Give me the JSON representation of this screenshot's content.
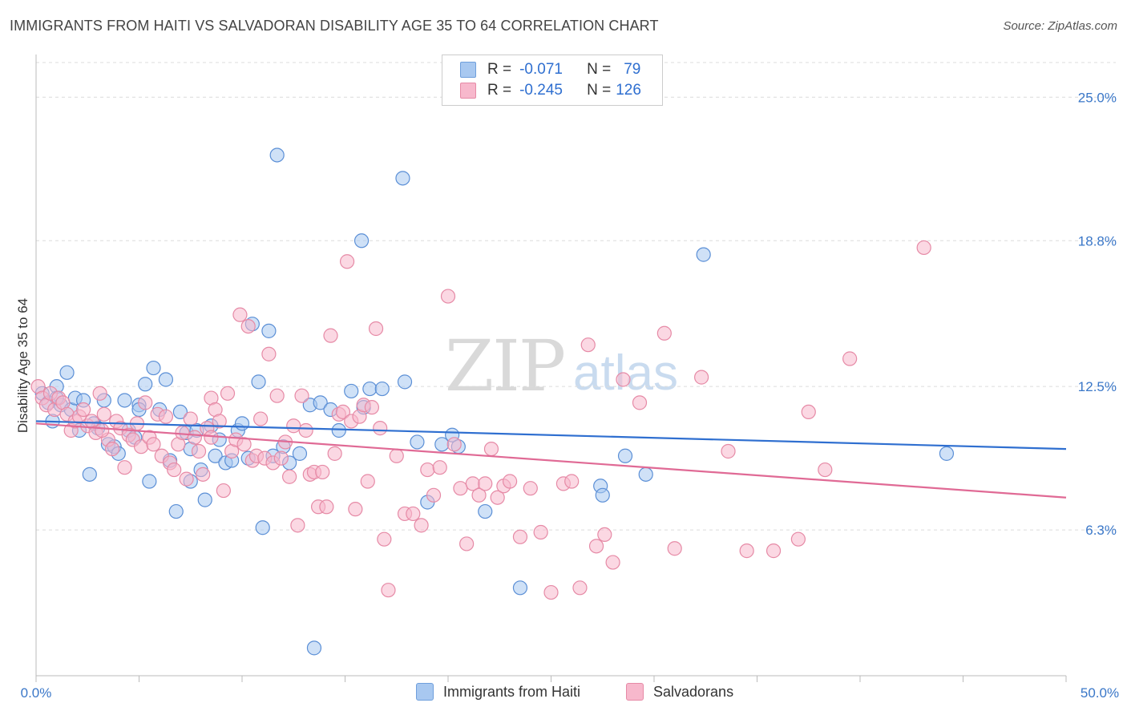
{
  "title": "IMMIGRANTS FROM HAITI VS SALVADORAN DISABILITY AGE 35 TO 64 CORRELATION CHART",
  "source": "Source: ZipAtlas.com",
  "watermark": {
    "zip": "ZIP",
    "atlas": "atlas"
  },
  "legend": {
    "rows": [
      {
        "r_label": "R =",
        "r_value": "-0.071",
        "n_label": "N =",
        "n_value": "79",
        "color": "#a8c8f0"
      },
      {
        "r_label": "R =",
        "r_value": "-0.245",
        "n_label": "N =",
        "n_value": "126",
        "color": "#f7b8cc"
      }
    ]
  },
  "bottom_legend": [
    {
      "label": "Immigrants from Haiti",
      "color": "#a8c8f0"
    },
    {
      "label": "Salvadorans",
      "color": "#f7b8cc"
    }
  ],
  "chart_data": {
    "type": "scatter",
    "title": "IMMIGRANTS FROM HAITI VS SALVADORAN DISABILITY AGE 35 TO 64 CORRELATION CHART",
    "xlabel": "",
    "ylabel": "Disability Age 35 to 64",
    "xlim": [
      0,
      50
    ],
    "ylim": [
      0,
      26.5
    ],
    "x_tick_labels": [
      "0.0%",
      "50.0%"
    ],
    "y_ticks": [
      6.3,
      12.5,
      18.8,
      25.0
    ],
    "y_tick_labels": [
      "6.3%",
      "12.5%",
      "18.8%",
      "25.0%"
    ],
    "grid": true,
    "legend_position": "top-center",
    "series": [
      {
        "name": "Immigrants from Haiti",
        "color": "#5b8fd6",
        "fill": "#a8c8f0",
        "trend": {
          "x": [
            0,
            50
          ],
          "y": [
            11.0,
            9.8
          ],
          "color": "#2f6fd0"
        },
        "points": [
          [
            0.3,
            12.2
          ],
          [
            0.6,
            11.8
          ],
          [
            0.8,
            11.0
          ],
          [
            1.0,
            12.5
          ],
          [
            1.2,
            11.7
          ],
          [
            1.5,
            13.1
          ],
          [
            1.7,
            11.5
          ],
          [
            1.9,
            12.0
          ],
          [
            2.1,
            10.6
          ],
          [
            2.3,
            11.9
          ],
          [
            2.6,
            8.7
          ],
          [
            2.8,
            10.9
          ],
          [
            3.0,
            10.7
          ],
          [
            3.3,
            11.9
          ],
          [
            3.5,
            10.0
          ],
          [
            3.8,
            9.9
          ],
          [
            4.0,
            9.6
          ],
          [
            4.3,
            11.9
          ],
          [
            4.5,
            10.6
          ],
          [
            4.8,
            10.3
          ],
          [
            5.0,
            11.7
          ],
          [
            5.3,
            12.6
          ],
          [
            5.5,
            8.4
          ],
          [
            5.7,
            13.3
          ],
          [
            6.0,
            11.5
          ],
          [
            6.3,
            12.8
          ],
          [
            6.5,
            9.3
          ],
          [
            6.8,
            7.1
          ],
          [
            7.0,
            11.4
          ],
          [
            7.3,
            10.5
          ],
          [
            7.5,
            8.4
          ],
          [
            7.8,
            10.6
          ],
          [
            8.0,
            8.9
          ],
          [
            8.2,
            7.6
          ],
          [
            8.5,
            10.8
          ],
          [
            8.7,
            9.5
          ],
          [
            8.9,
            10.2
          ],
          [
            9.2,
            9.2
          ],
          [
            9.5,
            9.3
          ],
          [
            9.8,
            10.6
          ],
          [
            10.0,
            10.9
          ],
          [
            10.3,
            9.4
          ],
          [
            10.5,
            15.2
          ],
          [
            10.8,
            12.7
          ],
          [
            11.0,
            6.4
          ],
          [
            11.3,
            14.9
          ],
          [
            11.5,
            9.5
          ],
          [
            11.7,
            22.5
          ],
          [
            12.0,
            9.9
          ],
          [
            12.3,
            9.2
          ],
          [
            12.8,
            9.6
          ],
          [
            13.3,
            11.7
          ],
          [
            13.5,
            1.2
          ],
          [
            13.8,
            11.8
          ],
          [
            14.3,
            11.5
          ],
          [
            14.7,
            10.6
          ],
          [
            15.3,
            12.3
          ],
          [
            15.9,
            11.6
          ],
          [
            15.8,
            18.8
          ],
          [
            16.2,
            12.4
          ],
          [
            16.8,
            12.4
          ],
          [
            17.9,
            12.7
          ],
          [
            17.8,
            21.5
          ],
          [
            18.5,
            10.1
          ],
          [
            19.0,
            7.5
          ],
          [
            19.7,
            10.0
          ],
          [
            20.2,
            10.4
          ],
          [
            20.5,
            9.9
          ],
          [
            21.8,
            7.1
          ],
          [
            23.5,
            3.8
          ],
          [
            27.4,
            8.2
          ],
          [
            27.5,
            7.8
          ],
          [
            28.6,
            9.5
          ],
          [
            29.6,
            8.7
          ],
          [
            32.4,
            18.2
          ],
          [
            44.2,
            9.6
          ],
          [
            7.5,
            9.8
          ],
          [
            5.0,
            11.5
          ],
          [
            1.0,
            12.0
          ]
        ]
      },
      {
        "name": "Salvadorans",
        "color": "#e68aa6",
        "fill": "#f7b8cc",
        "trend": {
          "x": [
            0,
            50
          ],
          "y": [
            10.9,
            7.7
          ],
          "color": "#e06a95"
        },
        "points": [
          [
            0.1,
            12.5
          ],
          [
            0.3,
            12.0
          ],
          [
            0.5,
            11.7
          ],
          [
            0.7,
            12.2
          ],
          [
            0.9,
            11.5
          ],
          [
            1.1,
            12.0
          ],
          [
            1.3,
            11.8
          ],
          [
            1.5,
            11.3
          ],
          [
            1.7,
            10.6
          ],
          [
            1.9,
            11.0
          ],
          [
            2.1,
            11.2
          ],
          [
            2.3,
            11.5
          ],
          [
            2.5,
            10.8
          ],
          [
            2.7,
            11.0
          ],
          [
            2.9,
            10.5
          ],
          [
            3.1,
            12.2
          ],
          [
            3.3,
            11.3
          ],
          [
            3.5,
            10.2
          ],
          [
            3.7,
            9.8
          ],
          [
            3.9,
            11.0
          ],
          [
            4.1,
            10.7
          ],
          [
            4.3,
            9.0
          ],
          [
            4.5,
            10.4
          ],
          [
            4.7,
            10.2
          ],
          [
            4.9,
            10.9
          ],
          [
            5.1,
            9.9
          ],
          [
            5.3,
            11.8
          ],
          [
            5.5,
            10.3
          ],
          [
            5.7,
            10.0
          ],
          [
            5.9,
            11.3
          ],
          [
            6.1,
            9.5
          ],
          [
            6.3,
            11.2
          ],
          [
            6.5,
            9.2
          ],
          [
            6.7,
            8.9
          ],
          [
            6.9,
            10.0
          ],
          [
            7.1,
            10.5
          ],
          [
            7.3,
            8.5
          ],
          [
            7.5,
            11.1
          ],
          [
            7.7,
            10.3
          ],
          [
            7.9,
            9.7
          ],
          [
            8.1,
            8.7
          ],
          [
            8.3,
            10.7
          ],
          [
            8.5,
            12.0
          ],
          [
            8.7,
            11.5
          ],
          [
            8.9,
            11.0
          ],
          [
            9.1,
            8.0
          ],
          [
            9.3,
            12.2
          ],
          [
            9.5,
            9.7
          ],
          [
            9.7,
            10.2
          ],
          [
            9.9,
            15.6
          ],
          [
            10.1,
            10.0
          ],
          [
            10.3,
            15.1
          ],
          [
            10.5,
            9.3
          ],
          [
            10.7,
            9.5
          ],
          [
            10.9,
            11.1
          ],
          [
            11.1,
            9.4
          ],
          [
            11.3,
            13.9
          ],
          [
            11.5,
            9.2
          ],
          [
            11.7,
            12.1
          ],
          [
            11.9,
            9.4
          ],
          [
            12.1,
            10.1
          ],
          [
            12.3,
            8.6
          ],
          [
            12.5,
            10.8
          ],
          [
            12.7,
            6.5
          ],
          [
            12.9,
            12.1
          ],
          [
            13.1,
            10.6
          ],
          [
            13.3,
            8.7
          ],
          [
            13.5,
            8.8
          ],
          [
            13.7,
            7.3
          ],
          [
            13.9,
            8.8
          ],
          [
            14.1,
            7.3
          ],
          [
            14.3,
            14.7
          ],
          [
            14.5,
            9.6
          ],
          [
            14.7,
            11.3
          ],
          [
            14.9,
            11.4
          ],
          [
            15.1,
            17.9
          ],
          [
            15.3,
            11.0
          ],
          [
            15.5,
            7.2
          ],
          [
            15.7,
            11.2
          ],
          [
            15.9,
            11.7
          ],
          [
            16.1,
            8.4
          ],
          [
            16.3,
            11.6
          ],
          [
            16.5,
            15.0
          ],
          [
            16.7,
            10.7
          ],
          [
            16.9,
            5.9
          ],
          [
            17.1,
            3.7
          ],
          [
            17.5,
            9.5
          ],
          [
            17.9,
            7.0
          ],
          [
            18.3,
            7.0
          ],
          [
            18.7,
            6.5
          ],
          [
            19.0,
            8.9
          ],
          [
            19.3,
            7.8
          ],
          [
            19.6,
            9.0
          ],
          [
            20.0,
            16.4
          ],
          [
            20.3,
            10.0
          ],
          [
            20.6,
            8.1
          ],
          [
            20.9,
            5.7
          ],
          [
            21.2,
            8.3
          ],
          [
            21.5,
            7.8
          ],
          [
            21.8,
            8.3
          ],
          [
            22.1,
            9.8
          ],
          [
            22.4,
            7.7
          ],
          [
            22.7,
            8.2
          ],
          [
            23.0,
            8.4
          ],
          [
            23.5,
            6.0
          ],
          [
            24.0,
            8.1
          ],
          [
            24.5,
            6.2
          ],
          [
            25.0,
            3.6
          ],
          [
            25.6,
            8.3
          ],
          [
            26.0,
            8.4
          ],
          [
            26.4,
            3.8
          ],
          [
            26.8,
            14.3
          ],
          [
            27.2,
            5.6
          ],
          [
            27.6,
            6.1
          ],
          [
            28.0,
            4.9
          ],
          [
            28.5,
            12.8
          ],
          [
            29.3,
            11.8
          ],
          [
            30.5,
            14.8
          ],
          [
            31.0,
            5.5
          ],
          [
            32.3,
            12.9
          ],
          [
            33.6,
            9.7
          ],
          [
            34.5,
            5.4
          ],
          [
            35.8,
            5.4
          ],
          [
            37.0,
            5.9
          ],
          [
            37.5,
            11.4
          ],
          [
            38.3,
            8.9
          ],
          [
            39.5,
            13.7
          ],
          [
            43.1,
            18.5
          ],
          [
            8.5,
            10.3
          ],
          [
            3.2,
            10.6
          ]
        ]
      }
    ]
  }
}
